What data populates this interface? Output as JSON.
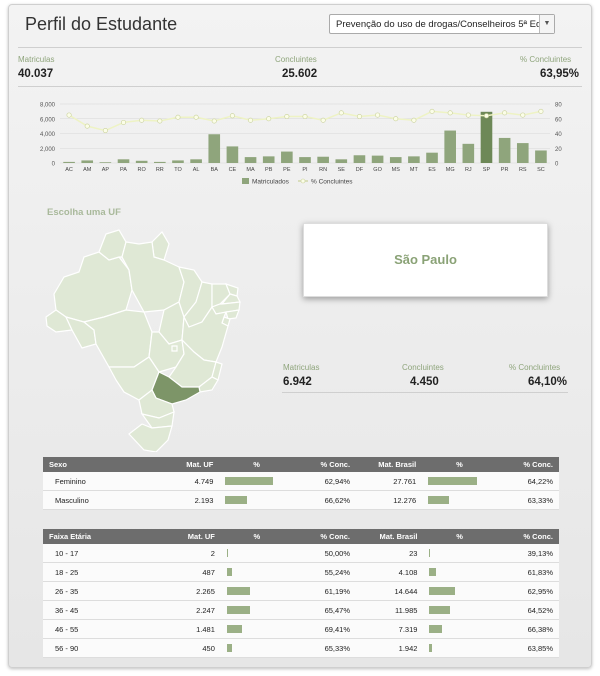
{
  "header": {
    "title": "Perfil do Estudante",
    "dropdown_value": "Prevenção do uso de drogas/Conselheiros 5ª Ed.",
    "dropdown_arrow": "▼"
  },
  "summary": {
    "matriculas_label": "Matriculas",
    "matriculas_value": "40.037",
    "concluintes_label": "Concluintes",
    "concluintes_value": "25.602",
    "pct_label": "% Concluintes",
    "pct_value": "63,95%"
  },
  "chart_data": {
    "type": "bar",
    "categories": [
      "AC",
      "AM",
      "AP",
      "PA",
      "RO",
      "RR",
      "TO",
      "AL",
      "BA",
      "CE",
      "MA",
      "PB",
      "PE",
      "PI",
      "RN",
      "SE",
      "DF",
      "GO",
      "MS",
      "MT",
      "ES",
      "MG",
      "RJ",
      "SP",
      "PR",
      "RS",
      "SC"
    ],
    "series": [
      {
        "name": "Matriculados",
        "type": "bar",
        "axis": "left",
        "values": [
          150,
          350,
          100,
          500,
          300,
          150,
          350,
          500,
          3900,
          2250,
          800,
          900,
          1550,
          800,
          850,
          500,
          1050,
          1000,
          800,
          900,
          1400,
          4400,
          2600,
          6942,
          3400,
          2700,
          1700
        ]
      },
      {
        "name": "% Concluintes",
        "type": "line",
        "axis": "right",
        "values": [
          65,
          50,
          44,
          55,
          58,
          57,
          62,
          62,
          57,
          64,
          58,
          60,
          63,
          63,
          58,
          68,
          63,
          65,
          60,
          58,
          70,
          68,
          65,
          64,
          68,
          65,
          70
        ]
      }
    ],
    "ylim_left": [
      0,
      8000
    ],
    "ylim_right": [
      0,
      80
    ],
    "yticks_left": [
      "0",
      "2,000",
      "4,000",
      "6,000",
      "8,000"
    ],
    "yticks_right": [
      "0",
      "20",
      "40",
      "60",
      "80"
    ],
    "legend_position": "bottom",
    "highlight_category": "SP",
    "colors": {
      "bar": "#8fa57c",
      "bar_highlight": "#6d8857",
      "line": "#eef3c4",
      "point_border": "#c9d19a"
    }
  },
  "map": {
    "section_label": "Escolha uma UF",
    "selected_state": "São Paulo",
    "colors": {
      "fill": "#dfe8d5",
      "stroke": "#ffffff",
      "selected": "#7d9568"
    }
  },
  "state_summary": {
    "matriculas_label": "Matriculas",
    "matriculas_value": "6.942",
    "concluintes_label": "Concluintes",
    "concluintes_value": "4.450",
    "pct_label": "% Concluintes",
    "pct_value": "64,10%"
  },
  "sexo_table": {
    "headers": [
      "Sexo",
      "Mat. UF",
      "%",
      "% Conc.",
      "Mat. Brasil",
      "%",
      "% Conc."
    ],
    "rows": [
      {
        "label": "Feminino",
        "mat_uf": "4.749",
        "pct_uf": 0.684,
        "conc_uf": "62,94%",
        "mat_br": "27.761",
        "pct_br": 0.693,
        "conc_br": "64,22%"
      },
      {
        "label": "Masculino",
        "mat_uf": "2.193",
        "pct_uf": 0.316,
        "conc_uf": "66,62%",
        "mat_br": "12.276",
        "pct_br": 0.307,
        "conc_br": "63,33%"
      }
    ]
  },
  "faixa_table": {
    "headers": [
      "Faixa Etária",
      "Mat. UF",
      "%",
      "% Conc.",
      "Mat. Brasil",
      "%",
      "% Conc."
    ],
    "rows": [
      {
        "label": "10 - 17",
        "mat_uf": "2",
        "pct_uf": 0.0003,
        "conc_uf": "50,00%",
        "mat_br": "23",
        "pct_br": 0.0006,
        "conc_br": "39,13%"
      },
      {
        "label": "18 - 25",
        "mat_uf": "487",
        "pct_uf": 0.07,
        "conc_uf": "55,24%",
        "mat_br": "4.108",
        "pct_br": 0.103,
        "conc_br": "61,83%"
      },
      {
        "label": "26 - 35",
        "mat_uf": "2.265",
        "pct_uf": 0.326,
        "conc_uf": "61,19%",
        "mat_br": "14.644",
        "pct_br": 0.366,
        "conc_br": "62,95%"
      },
      {
        "label": "36 - 45",
        "mat_uf": "2.247",
        "pct_uf": 0.324,
        "conc_uf": "65,47%",
        "mat_br": "11.985",
        "pct_br": 0.299,
        "conc_br": "64,52%"
      },
      {
        "label": "46 - 55",
        "mat_uf": "1.481",
        "pct_uf": 0.213,
        "conc_uf": "69,41%",
        "mat_br": "7.319",
        "pct_br": 0.183,
        "conc_br": "66,38%"
      },
      {
        "label": "56 - 90",
        "mat_uf": "450",
        "pct_uf": 0.065,
        "conc_uf": "65,33%",
        "mat_br": "1.942",
        "pct_br": 0.049,
        "conc_br": "63,85%"
      }
    ]
  }
}
